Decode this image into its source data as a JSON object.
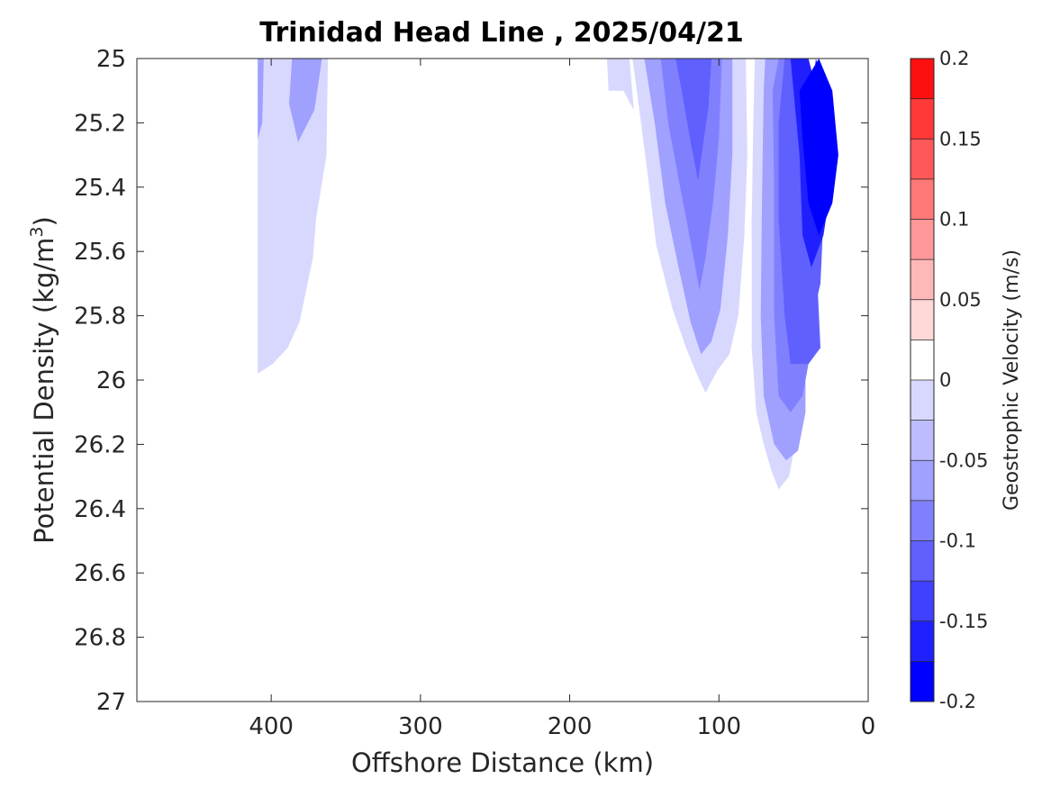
{
  "chart_data": {
    "type": "contour",
    "title": "Trinidad Head Line , 2025/04/21",
    "xlabel": "Offshore Distance (km)",
    "ylabel_main": "Potential Density (kg/m",
    "ylabel_sup": "3",
    "ylabel_close": ")",
    "colorbar_label": "Geostrophic Velocity (m/s)",
    "xlim": [
      490,
      0
    ],
    "ylim": [
      25,
      27
    ],
    "x_reversed": true,
    "y_reversed": true,
    "x_ticks": [
      {
        "value": 400,
        "label": "400"
      },
      {
        "value": 300,
        "label": "300"
      },
      {
        "value": 200,
        "label": "200"
      },
      {
        "value": 100,
        "label": "100"
      },
      {
        "value": 0,
        "label": "0"
      }
    ],
    "y_ticks": [
      {
        "value": 25,
        "label": "25"
      },
      {
        "value": 25.2,
        "label": "25.2"
      },
      {
        "value": 25.4,
        "label": "25.4"
      },
      {
        "value": 25.6,
        "label": "25.6"
      },
      {
        "value": 25.8,
        "label": "25.8"
      },
      {
        "value": 26,
        "label": "26"
      },
      {
        "value": 26.2,
        "label": "26.2"
      },
      {
        "value": 26.4,
        "label": "26.4"
      },
      {
        "value": 26.6,
        "label": "26.6"
      },
      {
        "value": 26.8,
        "label": "26.8"
      },
      {
        "value": 27,
        "label": "27"
      }
    ],
    "colorbar": {
      "range": [
        -0.2,
        0.2
      ],
      "levels": [
        -0.2,
        -0.175,
        -0.15,
        -0.125,
        -0.1,
        -0.075,
        -0.05,
        -0.025,
        0,
        0.025,
        0.05,
        0.075,
        0.1,
        0.125,
        0.15,
        0.175,
        0.2
      ],
      "colors": [
        "#0000ff",
        "#2020ff",
        "#4040ff",
        "#6060ff",
        "#8080ff",
        "#a0a0ff",
        "#bcbcff",
        "#d8d8ff",
        "#ffffff",
        "#ffd8d8",
        "#ffb8b8",
        "#ff9898",
        "#ff7878",
        "#ff5858",
        "#ff3838",
        "#ff1010"
      ],
      "ticks": [
        {
          "value": 0.2,
          "label": "0.2"
        },
        {
          "value": 0.15,
          "label": "0.15"
        },
        {
          "value": 0.1,
          "label": "0.1"
        },
        {
          "value": 0.05,
          "label": "0.05"
        },
        {
          "value": 0,
          "label": "0"
        },
        {
          "value": -0.05,
          "label": "-0.05"
        },
        {
          "value": -0.1,
          "label": "-0.1"
        },
        {
          "value": -0.15,
          "label": "-0.15"
        },
        {
          "value": -0.2,
          "label": "-0.2"
        }
      ]
    },
    "regions": [
      {
        "level": -0.025,
        "points": [
          [
            409,
            25
          ],
          [
            362,
            25
          ],
          [
            363,
            25.3
          ],
          [
            370,
            25.5
          ],
          [
            372,
            25.62
          ],
          [
            381,
            25.82
          ],
          [
            389,
            25.9
          ],
          [
            399,
            25.95
          ],
          [
            409,
            25.98
          ]
        ]
      },
      {
        "level": -0.05,
        "points": [
          [
            386,
            25
          ],
          [
            366,
            25
          ],
          [
            371,
            25.16
          ],
          [
            382,
            25.26
          ],
          [
            388,
            25.14
          ]
        ]
      },
      {
        "level": -0.05,
        "points": [
          [
            409,
            25
          ],
          [
            405,
            25
          ],
          [
            406,
            25.2
          ],
          [
            409,
            25.25
          ]
        ]
      },
      {
        "level": 0.025,
        "points": [
          [
            314,
            25
          ],
          [
            300,
            25
          ],
          [
            303,
            25.3
          ],
          [
            306,
            25.5
          ],
          [
            310,
            25.75
          ],
          [
            314,
            25.5
          ]
        ]
      },
      {
        "level": 0.025,
        "points": [
          [
            278,
            25
          ],
          [
            245,
            25
          ],
          [
            250,
            25.3
          ],
          [
            256,
            25.5
          ],
          [
            261,
            25.62
          ],
          [
            270,
            25.66
          ],
          [
            276,
            25.3
          ]
        ]
      },
      {
        "level": -0.025,
        "points": [
          [
            175,
            25
          ],
          [
            160,
            25
          ],
          [
            157,
            25.16
          ],
          [
            164,
            25.1
          ],
          [
            174,
            25.1
          ]
        ]
      },
      {
        "level": -0.025,
        "points": [
          [
            158,
            25
          ],
          [
            82,
            25
          ],
          [
            81,
            25.3
          ],
          [
            83,
            25.55
          ],
          [
            87,
            25.8
          ],
          [
            93,
            25.92
          ],
          [
            101,
            25.97
          ],
          [
            109,
            26.04
          ],
          [
            115,
            25.98
          ],
          [
            122,
            25.9
          ],
          [
            131,
            25.78
          ],
          [
            142,
            25.58
          ],
          [
            148,
            25.35
          ],
          [
            155,
            25.1
          ]
        ]
      },
      {
        "level": -0.05,
        "points": [
          [
            150,
            25
          ],
          [
            91,
            25
          ],
          [
            91,
            25.3
          ],
          [
            94,
            25.55
          ],
          [
            99,
            25.78
          ],
          [
            105,
            25.88
          ],
          [
            112,
            25.92
          ],
          [
            119,
            25.82
          ],
          [
            127,
            25.65
          ],
          [
            136,
            25.45
          ],
          [
            143,
            25.2
          ]
        ]
      },
      {
        "level": -0.075,
        "points": [
          [
            139,
            25
          ],
          [
            98,
            25
          ],
          [
            100,
            25.25
          ],
          [
            104,
            25.45
          ],
          [
            109,
            25.62
          ],
          [
            113,
            25.72
          ],
          [
            119,
            25.57
          ],
          [
            126,
            25.4
          ],
          [
            134,
            25.2
          ]
        ]
      },
      {
        "level": -0.1,
        "points": [
          [
            129,
            25
          ],
          [
            105,
            25
          ],
          [
            107,
            25.15
          ],
          [
            111,
            25.28
          ],
          [
            114,
            25.38
          ],
          [
            119,
            25.26
          ],
          [
            125,
            25.1
          ]
        ]
      },
      {
        "level": -0.125,
        "points": [
          [
            115,
            25
          ],
          [
            105,
            25
          ],
          [
            110,
            25.08
          ],
          [
            113,
            25.05
          ]
        ]
      },
      {
        "level": 0.025,
        "points": [
          [
            13,
            25.28
          ],
          [
            9,
            25.3
          ],
          [
            10,
            25.6
          ],
          [
            10,
            25.9
          ],
          [
            10,
            26.2
          ],
          [
            12,
            26.35
          ],
          [
            17,
            26.25
          ],
          [
            15,
            25.8
          ],
          [
            14,
            25.5
          ]
        ]
      },
      {
        "level": -0.025,
        "points": [
          [
            57,
            25
          ],
          [
            54,
            25.3
          ],
          [
            50,
            25.7
          ],
          [
            48,
            26
          ],
          [
            49,
            26.2
          ],
          [
            53,
            26.3
          ],
          [
            60,
            26.34
          ],
          [
            65,
            26.28
          ],
          [
            70,
            26.2
          ],
          [
            75,
            26.1
          ],
          [
            78,
            25.9
          ],
          [
            78,
            25.5
          ],
          [
            77,
            25.2
          ],
          [
            76,
            25
          ]
        ]
      },
      {
        "level": -0.05,
        "points": [
          [
            55,
            25
          ],
          [
            52,
            25.3
          ],
          [
            47,
            25.7
          ],
          [
            42,
            25.95
          ],
          [
            42,
            26.1
          ],
          [
            47,
            26.22
          ],
          [
            55,
            26.25
          ],
          [
            63,
            26.2
          ],
          [
            70,
            26.05
          ],
          [
            72,
            25.8
          ],
          [
            71,
            25.4
          ],
          [
            70,
            25.1
          ],
          [
            69,
            25
          ]
        ]
      },
      {
        "level": -0.075,
        "points": [
          [
            52,
            25
          ],
          [
            48,
            25.3
          ],
          [
            44,
            25.7
          ],
          [
            40,
            25.95
          ],
          [
            44,
            26.05
          ],
          [
            52,
            26.1
          ],
          [
            60,
            26.05
          ],
          [
            63,
            25.8
          ],
          [
            63,
            25.4
          ],
          [
            64,
            25.1
          ],
          [
            60,
            25
          ]
        ]
      },
      {
        "level": -0.1,
        "points": [
          [
            48,
            25
          ],
          [
            40,
            25.3
          ],
          [
            35,
            25.6
          ],
          [
            32,
            25.9
          ],
          [
            40,
            25.95
          ],
          [
            52,
            25.95
          ],
          [
            56,
            25.8
          ],
          [
            60,
            25.5
          ],
          [
            60,
            25.2
          ],
          [
            56,
            25
          ]
        ]
      },
      {
        "level": -0.125,
        "points": [
          [
            46,
            25
          ],
          [
            36,
            25.2
          ],
          [
            30,
            25.5
          ],
          [
            32,
            25.7
          ],
          [
            37,
            25.8
          ],
          [
            45,
            25.82
          ],
          [
            50,
            25.6
          ],
          [
            53,
            25.3
          ],
          [
            55,
            25.1
          ]
        ]
      },
      {
        "level": -0.15,
        "points": [
          [
            40,
            25
          ],
          [
            29,
            25.2
          ],
          [
            25,
            25.4
          ],
          [
            30,
            25.55
          ],
          [
            38,
            25.65
          ],
          [
            44,
            25.55
          ],
          [
            46,
            25.3
          ],
          [
            50,
            25.1
          ],
          [
            52,
            25
          ]
        ]
      },
      {
        "level": -0.175,
        "points": [
          [
            33,
            25
          ],
          [
            24,
            25.1
          ],
          [
            20,
            25.3
          ],
          [
            24,
            25.45
          ],
          [
            33,
            25.55
          ],
          [
            40,
            25.45
          ],
          [
            44,
            25.25
          ],
          [
            46,
            25.1
          ]
        ]
      },
      {
        "level": -0.2,
        "points": [
          [
            35,
            25
          ],
          [
            30,
            25.1
          ],
          [
            27,
            25.2
          ],
          [
            33,
            25.2
          ],
          [
            38,
            25.12
          ]
        ]
      },
      {
        "level": 0.025,
        "points": [
          [
            409,
            26.75
          ],
          [
            409,
            26.9
          ],
          [
            382,
            26.9
          ],
          [
            377,
            27
          ],
          [
            369,
            27
          ],
          [
            375,
            26.9
          ],
          [
            378,
            26.8
          ],
          [
            385,
            26.8
          ],
          [
            398,
            26.82
          ]
        ]
      },
      {
        "level": 0.025,
        "points": [
          [
            124,
            26.65
          ],
          [
            120,
            26.55
          ],
          [
            116,
            26.6
          ],
          [
            110,
            26.72
          ],
          [
            100,
            26.85
          ],
          [
            94,
            26.9
          ],
          [
            124,
            26.9
          ]
        ]
      },
      {
        "level": 0.025,
        "points": [
          [
            49,
            26.8
          ],
          [
            49,
            26.9
          ],
          [
            29,
            26.9
          ],
          [
            29,
            26.8
          ],
          [
            26,
            26.7
          ],
          [
            20,
            26.6
          ],
          [
            20,
            26.52
          ],
          [
            25,
            26.62
          ],
          [
            28,
            26.67
          ],
          [
            38,
            26.7
          ],
          [
            45,
            26.7
          ]
        ]
      }
    ]
  }
}
